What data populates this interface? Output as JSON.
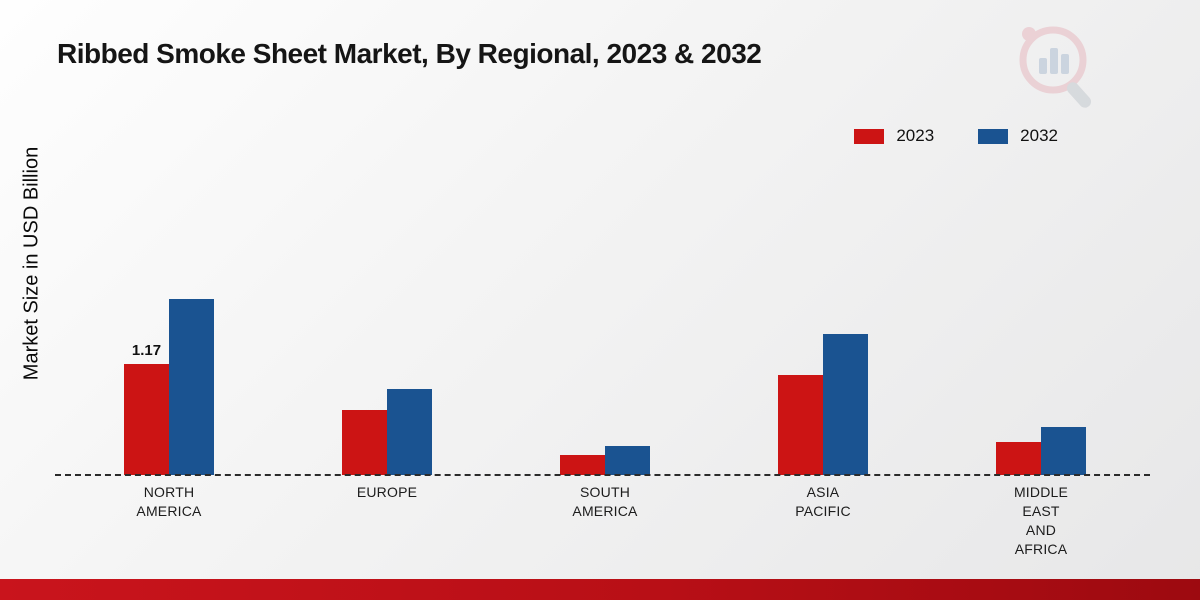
{
  "title": "Ribbed Smoke Sheet Market, By Regional, 2023 & 2032",
  "y_axis_label": "Market Size in USD Billion",
  "legend": [
    {
      "label": "2023",
      "color": "#cc1414"
    },
    {
      "label": "2032",
      "color": "#1a5391"
    }
  ],
  "colors": {
    "series_2023": "#cc1414",
    "series_2032": "#1a5391",
    "footer_band": "#b80f16",
    "background_start": "#fefefe",
    "background_end": "#e7e7e8"
  },
  "icons": {
    "watermark": "bar-chart-magnifier-icon"
  },
  "chart_data": {
    "type": "bar",
    "title": "Ribbed Smoke Sheet Market, By Regional, 2023 & 2032",
    "ylabel": "Market Size in USD Billion",
    "xlabel": "",
    "grid": false,
    "legend_position": "top-right",
    "baseline_style": "dashed",
    "ylim": [
      0,
      2.0
    ],
    "categories": [
      "NORTH\nAMERICA",
      "EUROPE",
      "SOUTH\nAMERICA",
      "ASIA\nPACIFIC",
      "MIDDLE\nEAST\nAND\nAFRICA"
    ],
    "series": [
      {
        "name": "2023",
        "color": "#cc1414",
        "values": [
          1.17,
          0.68,
          0.21,
          1.05,
          0.35
        ]
      },
      {
        "name": "2032",
        "color": "#1a5391",
        "values": [
          1.85,
          0.9,
          0.3,
          1.48,
          0.5
        ]
      }
    ],
    "bar_labels": [
      {
        "series": "2023",
        "category_index": 0,
        "text": "1.17"
      }
    ]
  }
}
